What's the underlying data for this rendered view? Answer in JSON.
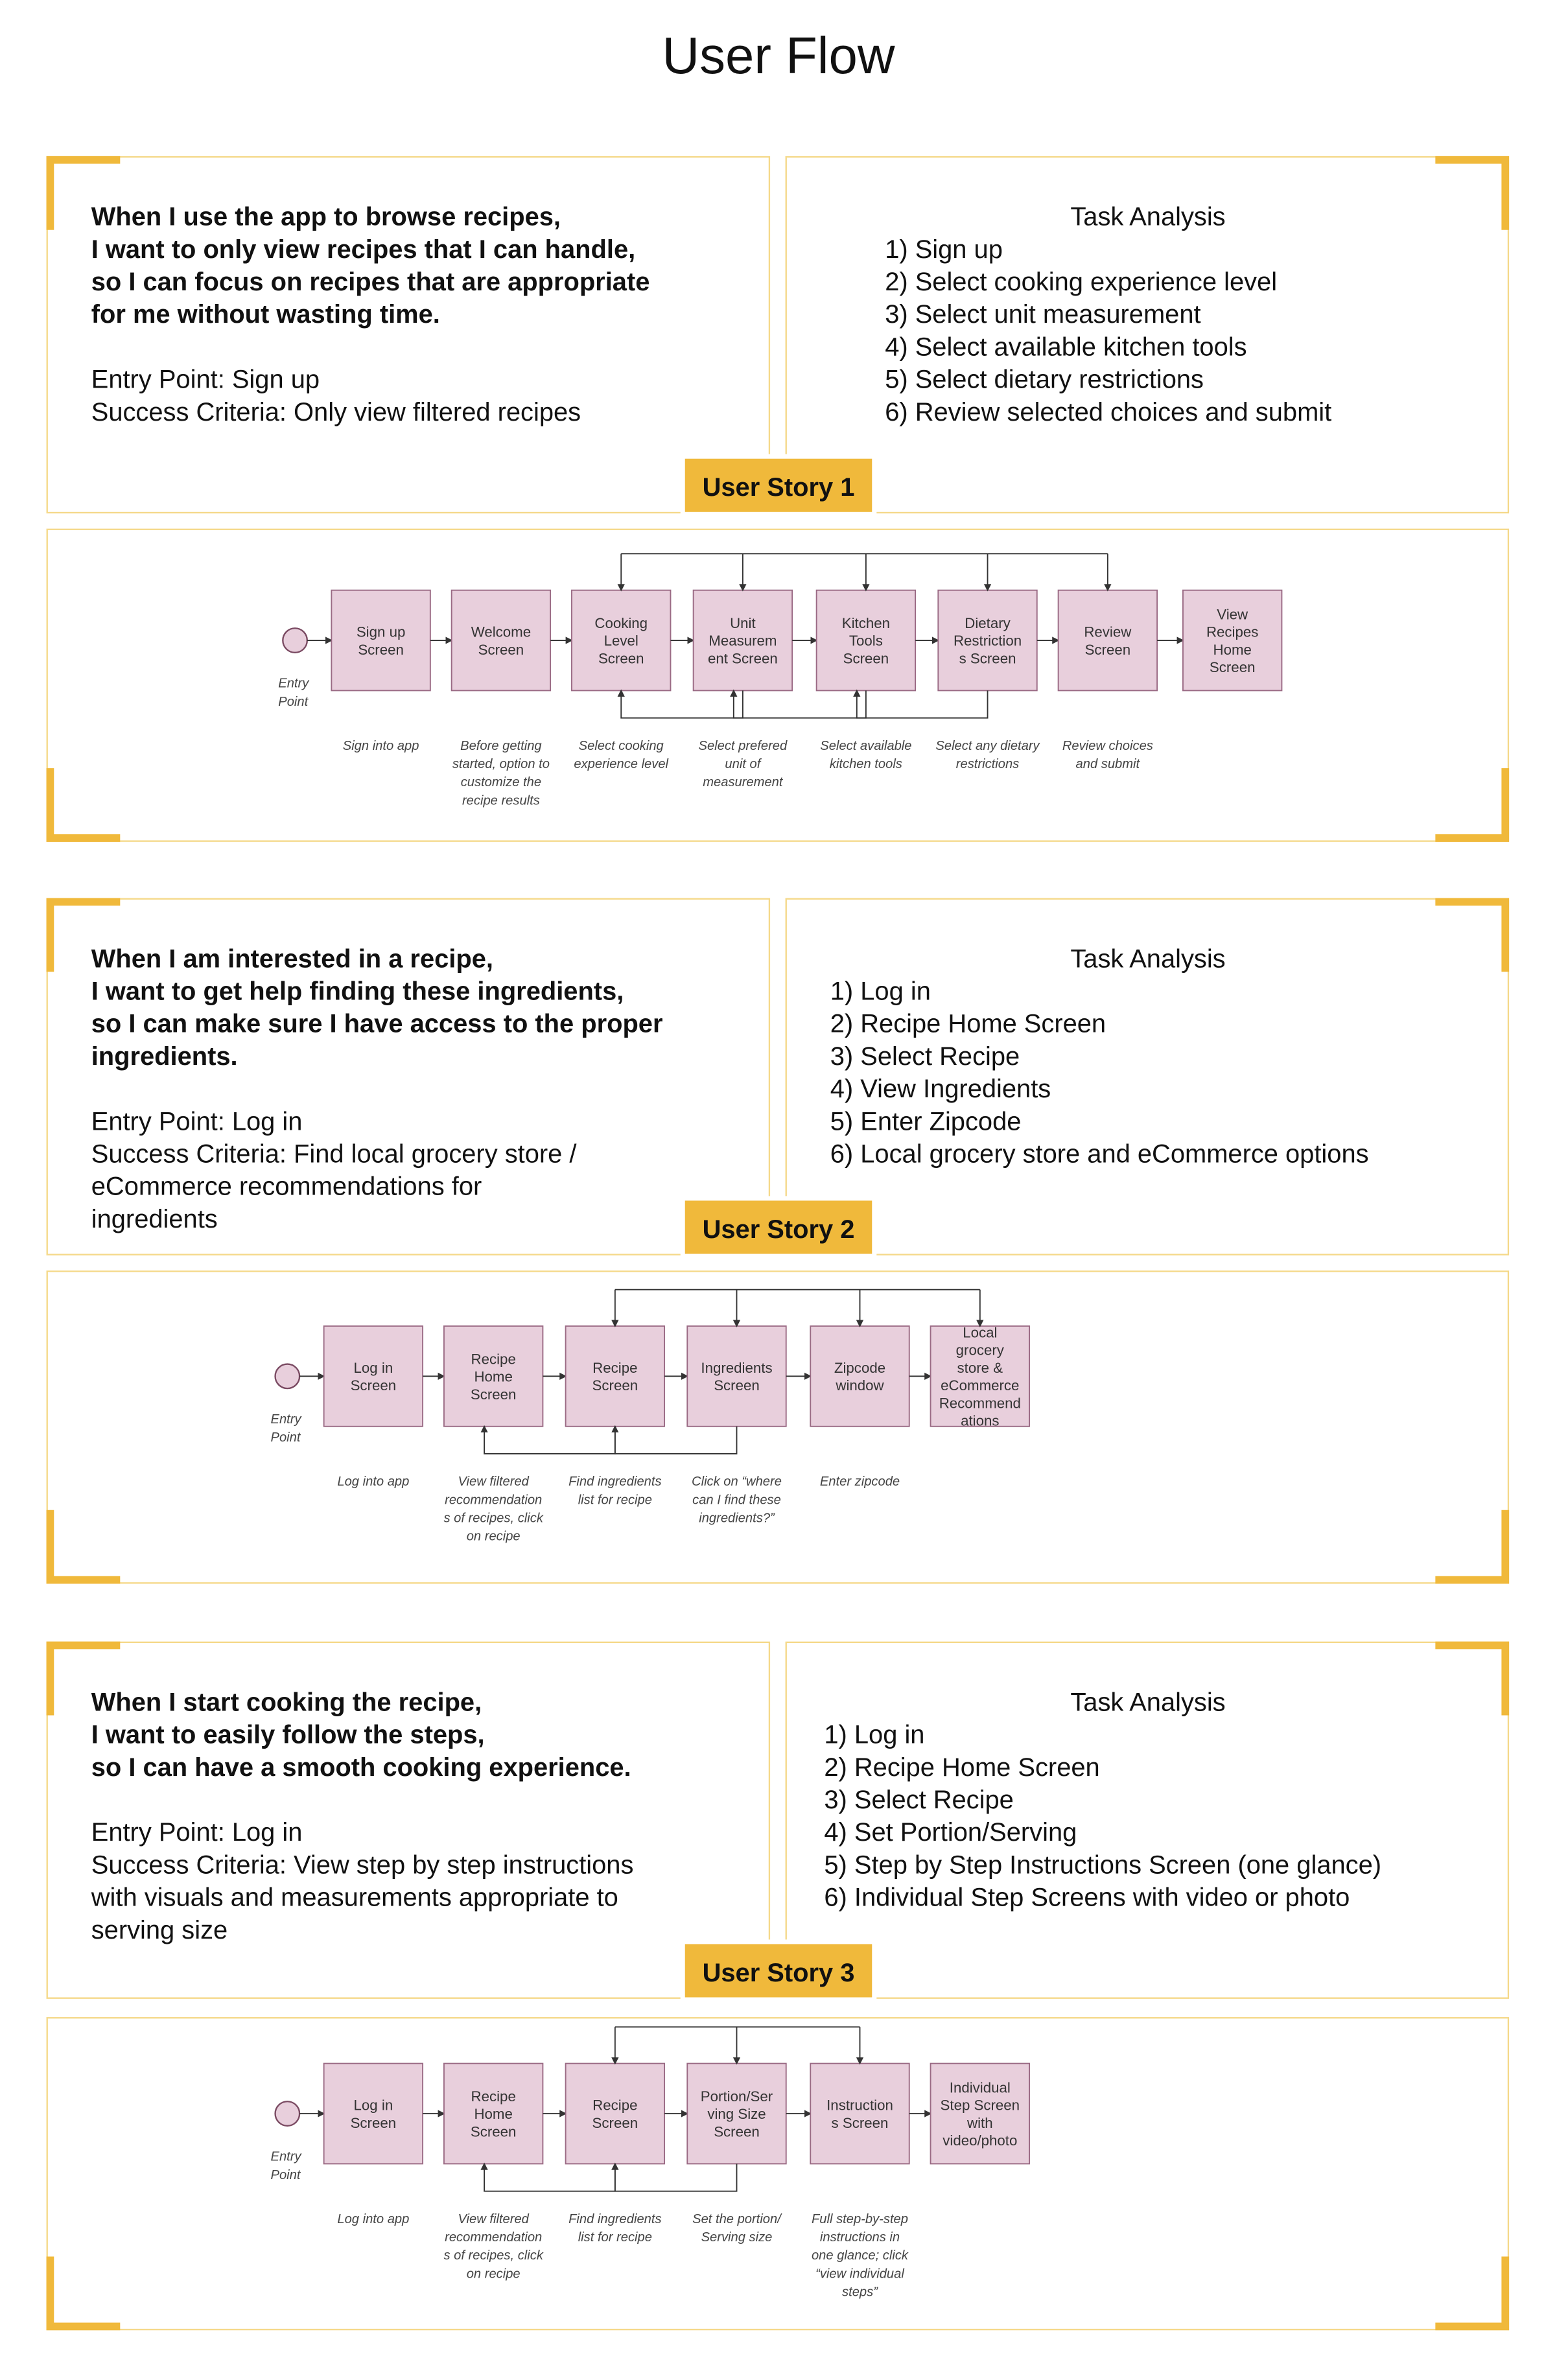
{
  "title": "User Flow",
  "stories": [
    {
      "label": "User Story 1",
      "story": [
        "When I use the app to browse recipes,",
        "I want to only view recipes that I can handle,",
        "so I can focus on recipes that are appropriate",
        "for me without wasting time."
      ],
      "details": [
        "Entry Point: Sign up",
        "Success Criteria: Only view filtered recipes"
      ],
      "task_title": "Task Analysis",
      "tasks": [
        "1) Sign up",
        "2) Select cooking experience level",
        "3) Select unit measurement",
        "4) Select available kitchen tools",
        "5) Select dietary restrictions",
        "6) Review selected choices and submit"
      ],
      "entry_label": [
        "Entry",
        "Point"
      ],
      "nodes": [
        {
          "label": [
            "Sign up",
            "Screen"
          ],
          "caption": [
            "Sign into app"
          ]
        },
        {
          "label": [
            "Welcome",
            "Screen"
          ],
          "caption": [
            "Before getting",
            "started, option to",
            "customize the",
            "recipe results"
          ]
        },
        {
          "label": [
            "Cooking",
            "Level",
            "Screen"
          ],
          "caption": [
            "Select cooking",
            "experience level"
          ]
        },
        {
          "label": [
            "Unit",
            "Measurem",
            "ent Screen"
          ],
          "caption": [
            "Select prefered",
            "unit of",
            "measurement"
          ]
        },
        {
          "label": [
            "Kitchen",
            "Tools",
            "Screen"
          ],
          "caption": [
            "Select available",
            "kitchen tools"
          ]
        },
        {
          "label": [
            "Dietary",
            "Restriction",
            "s Screen"
          ],
          "caption": [
            "Select any dietary",
            "restrictions"
          ]
        },
        {
          "label": [
            "Review",
            "Screen"
          ],
          "caption": [
            "Review choices",
            "and submit"
          ]
        },
        {
          "label": [
            "View",
            "Recipes",
            "Home",
            "Screen"
          ]
        }
      ]
    },
    {
      "label": "User Story 2",
      "story": [
        "When I am interested in a recipe,",
        "I want to get help finding these ingredients,",
        "so I can make sure I have access to the proper",
        "ingredients."
      ],
      "details": [
        "Entry Point: Log in",
        "Success Criteria: Find local grocery store /",
        "eCommerce recommendations for",
        "ingredients"
      ],
      "task_title": "Task Analysis",
      "tasks": [
        "1) Log in",
        "2) Recipe Home Screen",
        "3) Select Recipe",
        "4) View Ingredients",
        "5) Enter Zipcode",
        "6) Local grocery store and eCommerce options"
      ],
      "entry_label": [
        "Entry",
        "Point"
      ],
      "nodes": [
        {
          "label": [
            "Log in",
            "Screen"
          ],
          "caption": [
            "Log into app"
          ]
        },
        {
          "label": [
            "Recipe",
            "Home",
            "Screen"
          ],
          "caption": [
            "View filtered",
            "recommendation",
            "s of recipes, click",
            "on recipe"
          ]
        },
        {
          "label": [
            "Recipe",
            "Screen"
          ],
          "caption": [
            "Find ingredients",
            "list for recipe"
          ]
        },
        {
          "label": [
            "Ingredients",
            "Screen"
          ],
          "caption": [
            "Click on “where",
            "can I find these",
            "ingredients?”"
          ]
        },
        {
          "label": [
            "Zipcode",
            "window"
          ],
          "caption": [
            "Enter zipcode"
          ]
        },
        {
          "label": [
            "Local",
            "grocery",
            "store &",
            "eCommerce",
            "Recommend",
            "ations"
          ]
        }
      ]
    },
    {
      "label": "User Story 3",
      "story": [
        "When I start cooking the recipe,",
        "I want to easily follow the steps,",
        "so I can have a smooth cooking experience."
      ],
      "details": [
        "Entry Point: Log in",
        "Success Criteria: View step by step instructions",
        "with visuals and measurements appropriate to",
        "serving size"
      ],
      "task_title": "Task Analysis",
      "tasks": [
        "1) Log in",
        "2) Recipe Home Screen",
        "3) Select Recipe",
        "4) Set Portion/Serving",
        "5) Step by Step Instructions Screen (one glance)",
        "6) Individual Step Screens with video or photo"
      ],
      "entry_label": [
        "Entry",
        "Point"
      ],
      "nodes": [
        {
          "label": [
            "Log in",
            "Screen"
          ],
          "caption": [
            "Log into app"
          ]
        },
        {
          "label": [
            "Recipe",
            "Home",
            "Screen"
          ],
          "caption": [
            "View filtered",
            "recommendation",
            "s of recipes, click",
            "on recipe"
          ]
        },
        {
          "label": [
            "Recipe",
            "Screen"
          ],
          "caption": [
            "Find ingredients",
            "list for recipe"
          ]
        },
        {
          "label": [
            "Portion/Ser",
            "ving Size",
            "Screen"
          ],
          "caption": [
            "Set the portion/",
            "Serving size"
          ]
        },
        {
          "label": [
            "Instruction",
            "s Screen"
          ],
          "caption": [
            "Full step-by-step",
            "instructions in",
            "one glance; click",
            "“view individual",
            "steps”"
          ]
        },
        {
          "label": [
            "Individual",
            "Step Screen",
            "with",
            "video/photo"
          ]
        }
      ]
    }
  ]
}
